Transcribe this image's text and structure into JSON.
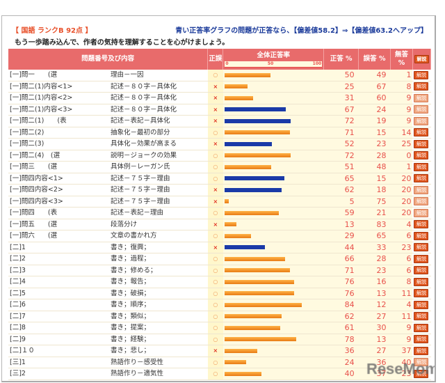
{
  "header": {
    "title": "【 国語 ランクB 92点 】",
    "note": "青い正答率グラフの問題が正答なら、【偏差値58.2】⇒【偏差値63.2へアップ】",
    "advice": "もう一歩踏み込んで、作者の気持を理解することを心がけましょう。"
  },
  "columns": {
    "question": "問題番号及び内容",
    "mark": "正誤",
    "rate": "全体正答率",
    "scale": [
      "0",
      "50",
      "100"
    ],
    "correct": "正答 %",
    "wrong": "誤答 %",
    "blank": "無答 %",
    "explain": "解説"
  },
  "colors": {
    "header": "#e86b6b",
    "bar_normal": "#f0901e",
    "bar_highlight": "#1a3aa8",
    "number": "#e8504a"
  },
  "rows": [
    {
      "q": "[一]問一　　(選",
      "c": "理由－一因",
      "mark": "○",
      "correct": "50",
      "wrong": "49",
      "blank": "1",
      "bar": "orange",
      "btn": "解説"
    },
    {
      "q": "[一]問二(1)内容<1>",
      "c": "記述－８０字－具体化",
      "mark": "×",
      "correct": "25",
      "wrong": "67",
      "blank": "8",
      "bar": "orange",
      "btn": "解説"
    },
    {
      "q": "[一]問二(1)内容<2>",
      "c": "記述－８０字－具体化",
      "mark": "×",
      "correct": "31",
      "wrong": "60",
      "blank": "9",
      "bar": "orange",
      "btn": "解説",
      "faded": true
    },
    {
      "q": "[一]問二(1)内容<3>",
      "c": "記述－８０字－具体化",
      "mark": "×",
      "correct": "67",
      "wrong": "24",
      "blank": "9",
      "bar": "blue",
      "btn": "解説",
      "faded": true
    },
    {
      "q": "[一]問二(1)　　(表",
      "c": "記述－表記－具体化",
      "mark": "×",
      "correct": "72",
      "wrong": "19",
      "blank": "9",
      "bar": "blue",
      "btn": "解説",
      "faded": true
    },
    {
      "q": "[一]問二(2)",
      "c": "抽象化－最初の部分",
      "mark": "○",
      "correct": "71",
      "wrong": "15",
      "blank": "14",
      "bar": "orange",
      "btn": "解説"
    },
    {
      "q": "[一]問二(3)",
      "c": "具体化－効果が高まる",
      "mark": "×",
      "correct": "52",
      "wrong": "23",
      "blank": "25",
      "bar": "blue",
      "btn": "解説"
    },
    {
      "q": "[一]問二(4)　(選",
      "c": "説明－ジョークの効果",
      "mark": "○",
      "correct": "72",
      "wrong": "28",
      "blank": "0",
      "bar": "orange",
      "btn": "解説"
    },
    {
      "q": "[一]問三　　(選",
      "c": "具体例－レーガン氏",
      "mark": "○",
      "correct": "51",
      "wrong": "48",
      "blank": "1",
      "bar": "orange",
      "btn": "解説"
    },
    {
      "q": "[一]問四内容<1>",
      "c": "記述－７５字－理由",
      "mark": "○",
      "correct": "65",
      "wrong": "15",
      "blank": "20",
      "bar": "blue",
      "btn": "解説"
    },
    {
      "q": "[一]問四内容<2>",
      "c": "記述－７５字－理由",
      "mark": "×",
      "correct": "62",
      "wrong": "18",
      "blank": "20",
      "bar": "blue",
      "btn": "解説",
      "faded": true
    },
    {
      "q": "[一]問四内容<3>",
      "c": "記述－７５字－理由",
      "mark": "×",
      "correct": "5",
      "wrong": "75",
      "blank": "20",
      "bar": "orange",
      "btn": "解説",
      "faded": true
    },
    {
      "q": "[一]問四　　(表",
      "c": "記述－表記－理由",
      "mark": "○",
      "correct": "59",
      "wrong": "21",
      "blank": "20",
      "bar": "orange",
      "btn": "解説",
      "faded": true
    },
    {
      "q": "[一]問五　　(選",
      "c": "段落分け",
      "mark": "×",
      "correct": "13",
      "wrong": "83",
      "blank": "4",
      "bar": "orange",
      "btn": "解説"
    },
    {
      "q": "[一]問六　　(選",
      "c": "文章の書かれ方",
      "mark": "○",
      "correct": "29",
      "wrong": "65",
      "blank": "6",
      "bar": "orange",
      "btn": "解説"
    },
    {
      "q": "[二]1",
      "c": "書き；復興；",
      "mark": "×",
      "correct": "44",
      "wrong": "33",
      "blank": "23",
      "bar": "blue",
      "btn": "解説"
    },
    {
      "q": "[二]2",
      "c": "書き；過程；",
      "mark": "○",
      "correct": "66",
      "wrong": "28",
      "blank": "6",
      "bar": "orange",
      "btn": "解説"
    },
    {
      "q": "[二]3",
      "c": "書き；修める；",
      "mark": "○",
      "correct": "71",
      "wrong": "23",
      "blank": "6",
      "bar": "orange",
      "btn": "解説"
    },
    {
      "q": "[二]4",
      "c": "書き；報告；",
      "mark": "○",
      "correct": "76",
      "wrong": "16",
      "blank": "8",
      "bar": "orange",
      "btn": "解説"
    },
    {
      "q": "[二]5",
      "c": "書き；破損；",
      "mark": "○",
      "correct": "76",
      "wrong": "13",
      "blank": "11",
      "bar": "orange",
      "btn": "解説"
    },
    {
      "q": "[二]6",
      "c": "書き；順序；",
      "mark": "○",
      "correct": "84",
      "wrong": "12",
      "blank": "4",
      "bar": "orange",
      "btn": "解説"
    },
    {
      "q": "[二]7",
      "c": "書き；類似；",
      "mark": "○",
      "correct": "62",
      "wrong": "27",
      "blank": "11",
      "bar": "orange",
      "btn": "解説"
    },
    {
      "q": "[二]8",
      "c": "書き；提案；",
      "mark": "○",
      "correct": "61",
      "wrong": "30",
      "blank": "9",
      "bar": "orange",
      "btn": "解説"
    },
    {
      "q": "[二]9",
      "c": "書き；経験；",
      "mark": "○",
      "correct": "78",
      "wrong": "13",
      "blank": "9",
      "bar": "orange",
      "btn": "解説"
    },
    {
      "q": "[二]１０",
      "c": "書き；悲し；",
      "mark": "×",
      "correct": "36",
      "wrong": "27",
      "blank": "37",
      "bar": "orange",
      "btn": "解説"
    },
    {
      "q": "[三]1",
      "c": "熟語作り－感受性",
      "mark": "○",
      "correct": "24",
      "wrong": "36",
      "blank": "40",
      "bar": "orange",
      "btn": "解説",
      "faded": true
    },
    {
      "q": "[三]2",
      "c": "熟語作り－適気性",
      "mark": "○",
      "correct": "40",
      "wrong": "37",
      "blank": "23",
      "bar": "orange",
      "btn": "解説"
    }
  ],
  "watermark": "ReseMom"
}
